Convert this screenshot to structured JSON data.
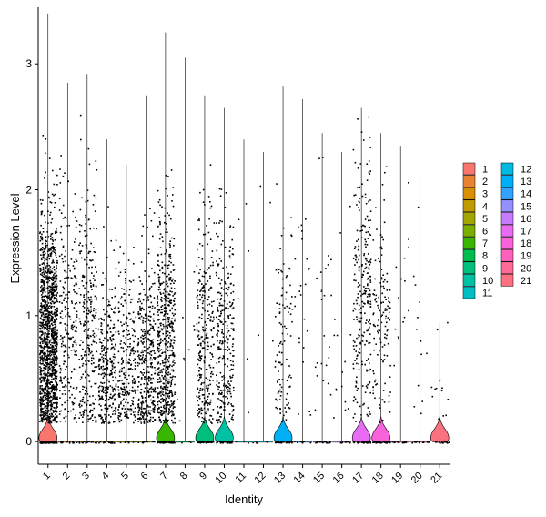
{
  "chart_data": {
    "type": "violin",
    "xlabel": "Identity",
    "ylabel": "Expression Level",
    "ylim": [
      -0.18,
      3.45
    ],
    "yticks": [
      0,
      1,
      2,
      3
    ],
    "grid": false,
    "legend_position": "right",
    "categories": [
      "1",
      "2",
      "3",
      "4",
      "5",
      "6",
      "7",
      "8",
      "9",
      "10",
      "11",
      "12",
      "13",
      "14",
      "15",
      "16",
      "17",
      "18",
      "19",
      "20",
      "21"
    ],
    "colors": [
      "#F8766D",
      "#EA8331",
      "#D89000",
      "#C09B00",
      "#A3A500",
      "#7CAE00",
      "#39B600",
      "#00BB4E",
      "#00BF7D",
      "#00C1A3",
      "#00BFC4",
      "#00BAE0",
      "#00B0F6",
      "#35A2FF",
      "#9590FF",
      "#C77CFF",
      "#E76BF3",
      "#FA62DB",
      "#FF62BC",
      "#FF6A98",
      "#FC717F"
    ],
    "series": [
      {
        "id": "1",
        "n": 1400,
        "frac": 0.93,
        "max": 3.4,
        "center": 0.8,
        "spread": 0.5,
        "zeroViolin": true
      },
      {
        "id": "2",
        "n": 250,
        "frac": 0.95,
        "max": 2.85,
        "center": 0.9,
        "spread": 0.55
      },
      {
        "id": "3",
        "n": 300,
        "frac": 0.95,
        "max": 2.92,
        "center": 0.9,
        "spread": 0.6
      },
      {
        "id": "4",
        "n": 320,
        "frac": 0.96,
        "max": 2.4,
        "center": 0.55,
        "spread": 0.4
      },
      {
        "id": "5",
        "n": 260,
        "frac": 0.96,
        "max": 2.2,
        "center": 0.6,
        "spread": 0.4
      },
      {
        "id": "6",
        "n": 380,
        "frac": 0.96,
        "max": 2.75,
        "center": 0.6,
        "spread": 0.45
      },
      {
        "id": "7",
        "n": 620,
        "frac": 0.9,
        "max": 3.25,
        "center": 0.75,
        "spread": 0.5,
        "zeroViolin": true
      },
      {
        "id": "8",
        "n": 12,
        "frac": 0.6,
        "max": 3.05,
        "center": 0.5,
        "spread": 0.5
      },
      {
        "id": "9",
        "n": 330,
        "frac": 0.85,
        "max": 2.75,
        "center": 0.8,
        "spread": 0.5,
        "zeroViolin": true
      },
      {
        "id": "10",
        "n": 330,
        "frac": 0.85,
        "max": 2.65,
        "center": 0.8,
        "spread": 0.5,
        "zeroViolin": true
      },
      {
        "id": "11",
        "n": 10,
        "frac": 0.5,
        "max": 2.4,
        "center": 1.2,
        "spread": 0.8
      },
      {
        "id": "12",
        "n": 10,
        "frac": 0.5,
        "max": 2.3,
        "center": 1.3,
        "spread": 0.7
      },
      {
        "id": "13",
        "n": 140,
        "frac": 0.7,
        "max": 2.82,
        "center": 0.8,
        "spread": 0.5,
        "zeroViolin": true
      },
      {
        "id": "14",
        "n": 35,
        "frac": 0.6,
        "max": 2.72,
        "center": 1.0,
        "spread": 0.6
      },
      {
        "id": "15",
        "n": 45,
        "frac": 0.6,
        "max": 2.45,
        "center": 1.0,
        "spread": 0.6
      },
      {
        "id": "16",
        "n": 25,
        "frac": 0.6,
        "max": 2.3,
        "center": 0.8,
        "spread": 0.6
      },
      {
        "id": "17",
        "n": 300,
        "frac": 0.82,
        "max": 2.65,
        "center": 1.2,
        "spread": 0.55,
        "zeroViolin": true
      },
      {
        "id": "18",
        "n": 170,
        "frac": 0.78,
        "max": 2.45,
        "center": 0.9,
        "spread": 0.5,
        "zeroViolin": true
      },
      {
        "id": "19",
        "n": 30,
        "frac": 0.6,
        "max": 2.35,
        "center": 0.9,
        "spread": 0.6
      },
      {
        "id": "20",
        "n": 25,
        "frac": 0.6,
        "max": 2.1,
        "center": 1.0,
        "spread": 0.6
      },
      {
        "id": "21",
        "n": 28,
        "frac": 0.45,
        "max": 0.95,
        "center": 0.4,
        "spread": 0.25,
        "zeroViolin": true
      }
    ]
  }
}
